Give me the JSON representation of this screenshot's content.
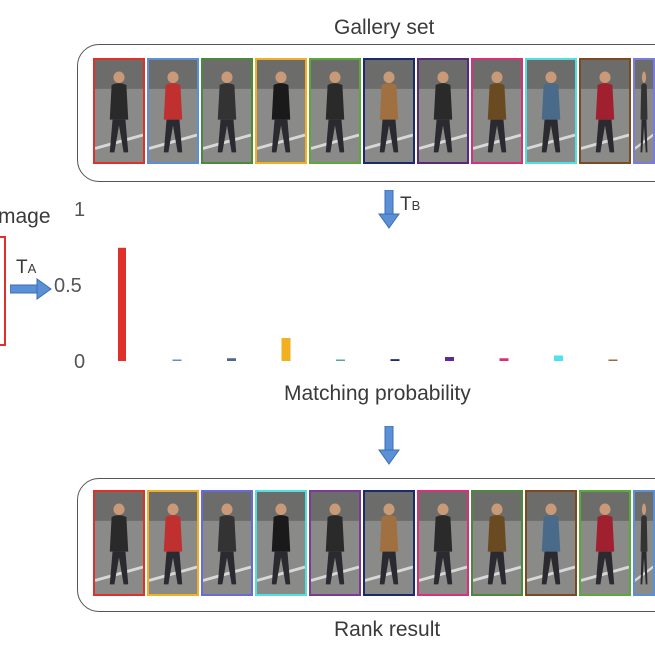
{
  "gallery": {
    "title": "Gallery set"
  },
  "query": {
    "label_partial": "mage",
    "transform_label": "T",
    "transform_sub": "A"
  },
  "gallery_transform": {
    "label": "T",
    "sub": "B"
  },
  "chart": {
    "xlabel": "Matching probability"
  },
  "rank": {
    "title": "Rank result"
  },
  "gallery_border_colors": [
    "#e0302a",
    "#5b8fd6",
    "#4a8a3a",
    "#f0b020",
    "#5aaa3a",
    "#1a2a6a",
    "#5a2a7a",
    "#d8307a",
    "#50e0e0",
    "#7a4a20",
    "#7a7ae0"
  ],
  "rank_border_colors": [
    "#e0302a",
    "#f0b020",
    "#6a6ad6",
    "#50e0e0",
    "#7a3a9a",
    "#1a2a6a",
    "#d8307a",
    "#4a8a3a",
    "#7a4a20",
    "#5aaa3a",
    "#5b8fd6"
  ],
  "chart_data": {
    "type": "bar",
    "ylim": [
      0,
      1
    ],
    "yticks": [
      "0",
      "0.5",
      "1"
    ],
    "values": [
      0.74,
      0.004,
      0.018,
      0.15,
      0.006,
      0.012,
      0.026,
      0.018,
      0.036,
      0.006,
      0.02
    ],
    "colors": [
      "#e0302a",
      "#5b8fd6",
      "#4a6a8a",
      "#f0b020",
      "#5aaa8a",
      "#1a2a6a",
      "#5a2a9a",
      "#d8307a",
      "#50e0f0",
      "#9a6a3a",
      "#7a7ae0"
    ]
  }
}
